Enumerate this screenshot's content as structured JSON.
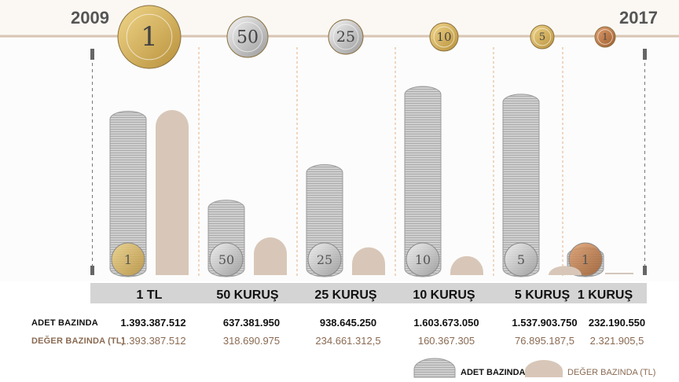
{
  "header": {
    "year_start": "2009",
    "year_end": "2017"
  },
  "colors": {
    "timeline": "#d9c6b3",
    "coin_stack": "#c9c9c9",
    "value_bar": "#d8c7b8",
    "category_band": "#d4d4d4",
    "value_text": "#8a6a52"
  },
  "rows": {
    "adet_label": "ADET BAZINDA",
    "deger_label": "DEĞER BAZINDA (TL)"
  },
  "legend": {
    "adet": "ADET BAZINDA",
    "deger": "DEĞER BAZINDA (TL)"
  },
  "chart_data": {
    "type": "bar",
    "categories": [
      "1 TL",
      "50 KURUŞ",
      "25 KURUŞ",
      "10 KURUŞ",
      "5 KURUŞ",
      "1 KURUŞ"
    ],
    "coin_faces": [
      "1",
      "50",
      "25",
      "10",
      "5",
      "1"
    ],
    "series": [
      {
        "name": "ADET BAZINDA",
        "values": [
          1393387512,
          637381950,
          938645250,
          1603673050,
          1537903750,
          232190550
        ],
        "labels": [
          "1.393.387.512",
          "637.381.950",
          "938.645.250",
          "1.603.673.050",
          "1.537.903.750",
          "232.190.550"
        ]
      },
      {
        "name": "DEĞER BAZINDA (TL)",
        "values": [
          1393387512,
          318690975,
          234661312.5,
          160367305,
          76895187.5,
          2321905.5
        ],
        "labels": [
          "1.393.387.512",
          "318.690.975",
          "234.661.312,5",
          "160.367.305",
          "76.895.187,5",
          "2.321.905,5"
        ]
      }
    ]
  }
}
